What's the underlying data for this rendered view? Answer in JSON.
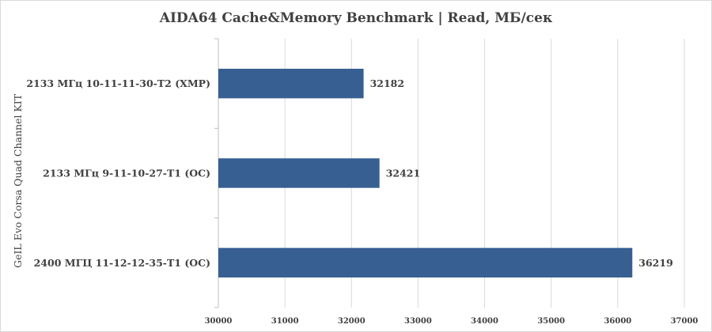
{
  "chart_data": {
    "type": "bar",
    "orientation": "horizontal",
    "title": "AIDA64 Cache&Memory Benchmark | Read, МБ/сек",
    "ylabel": "GeIL Evo Corsa Quad Channel KIT",
    "xlabel": "",
    "categories": [
      "2133 МГц 10-11-11-30-T2 (XMP)",
      "2133 МГц 9-11-10-27-T1 (OC)",
      "2400 МГЦ 11-12-12-35-T1 (OC)"
    ],
    "values": [
      32182,
      32421,
      36219
    ],
    "xlim": [
      30000,
      37000
    ],
    "xticks": [
      30000,
      31000,
      32000,
      33000,
      34000,
      35000,
      36000,
      37000
    ],
    "gridlines": true,
    "legend": "none",
    "bar_color": "#375F92"
  }
}
